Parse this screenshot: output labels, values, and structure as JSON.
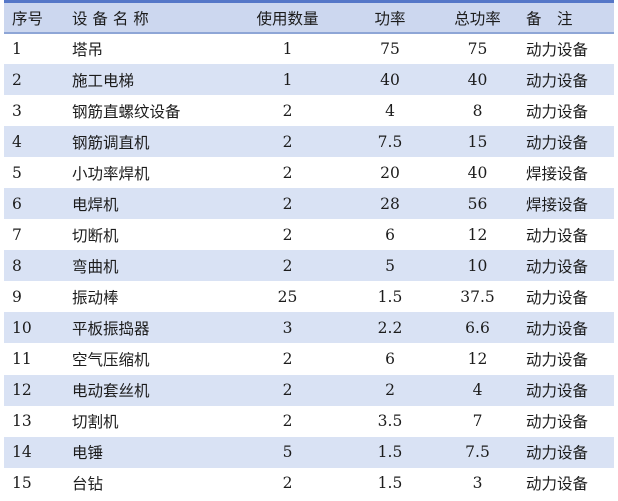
{
  "colors": {
    "top_border": "#5577c8",
    "header_fill": "#ccd7ef",
    "band_fill": "#d9e2f4",
    "header_underline": "#8ea6d6",
    "text": "#1c1c1c"
  },
  "table": {
    "columns": [
      {
        "label": "序号"
      },
      {
        "label": "设 备 名 称"
      },
      {
        "label": "使用数量"
      },
      {
        "label": "功率"
      },
      {
        "label": "总功率"
      },
      {
        "label": "备　注"
      }
    ],
    "rows": [
      [
        "1",
        "塔吊",
        "1",
        "75",
        "75",
        "动力设备"
      ],
      [
        "2",
        "施工电梯",
        "1",
        "40",
        "40",
        "动力设备"
      ],
      [
        "3",
        "钢筋直螺纹设备",
        "2",
        "4",
        "8",
        "动力设备"
      ],
      [
        "4",
        "钢筋调直机",
        "2",
        "7.5",
        "15",
        "动力设备"
      ],
      [
        "5",
        "小功率焊机",
        "2",
        "20",
        "40",
        "焊接设备"
      ],
      [
        "6",
        "电焊机",
        "2",
        "28",
        "56",
        "焊接设备"
      ],
      [
        "7",
        "切断机",
        "2",
        "6",
        "12",
        "动力设备"
      ],
      [
        "8",
        "弯曲机",
        "2",
        "5",
        "10",
        "动力设备"
      ],
      [
        "9",
        "振动棒",
        "25",
        "1.5",
        "37.5",
        "动力设备"
      ],
      [
        "10",
        "平板振捣器",
        "3",
        "2.2",
        "6.6",
        "动力设备"
      ],
      [
        "11",
        "空气压缩机",
        "2",
        "6",
        "12",
        "动力设备"
      ],
      [
        "12",
        "电动套丝机",
        "2",
        "2",
        "4",
        "动力设备"
      ],
      [
        "13",
        "切割机",
        "2",
        "3.5",
        "7",
        "动力设备"
      ],
      [
        "14",
        "电锤",
        "5",
        "1.5",
        "7.5",
        "动力设备"
      ],
      [
        "15",
        "台钻",
        "2",
        "1.5",
        "3",
        "动力设备"
      ]
    ]
  }
}
